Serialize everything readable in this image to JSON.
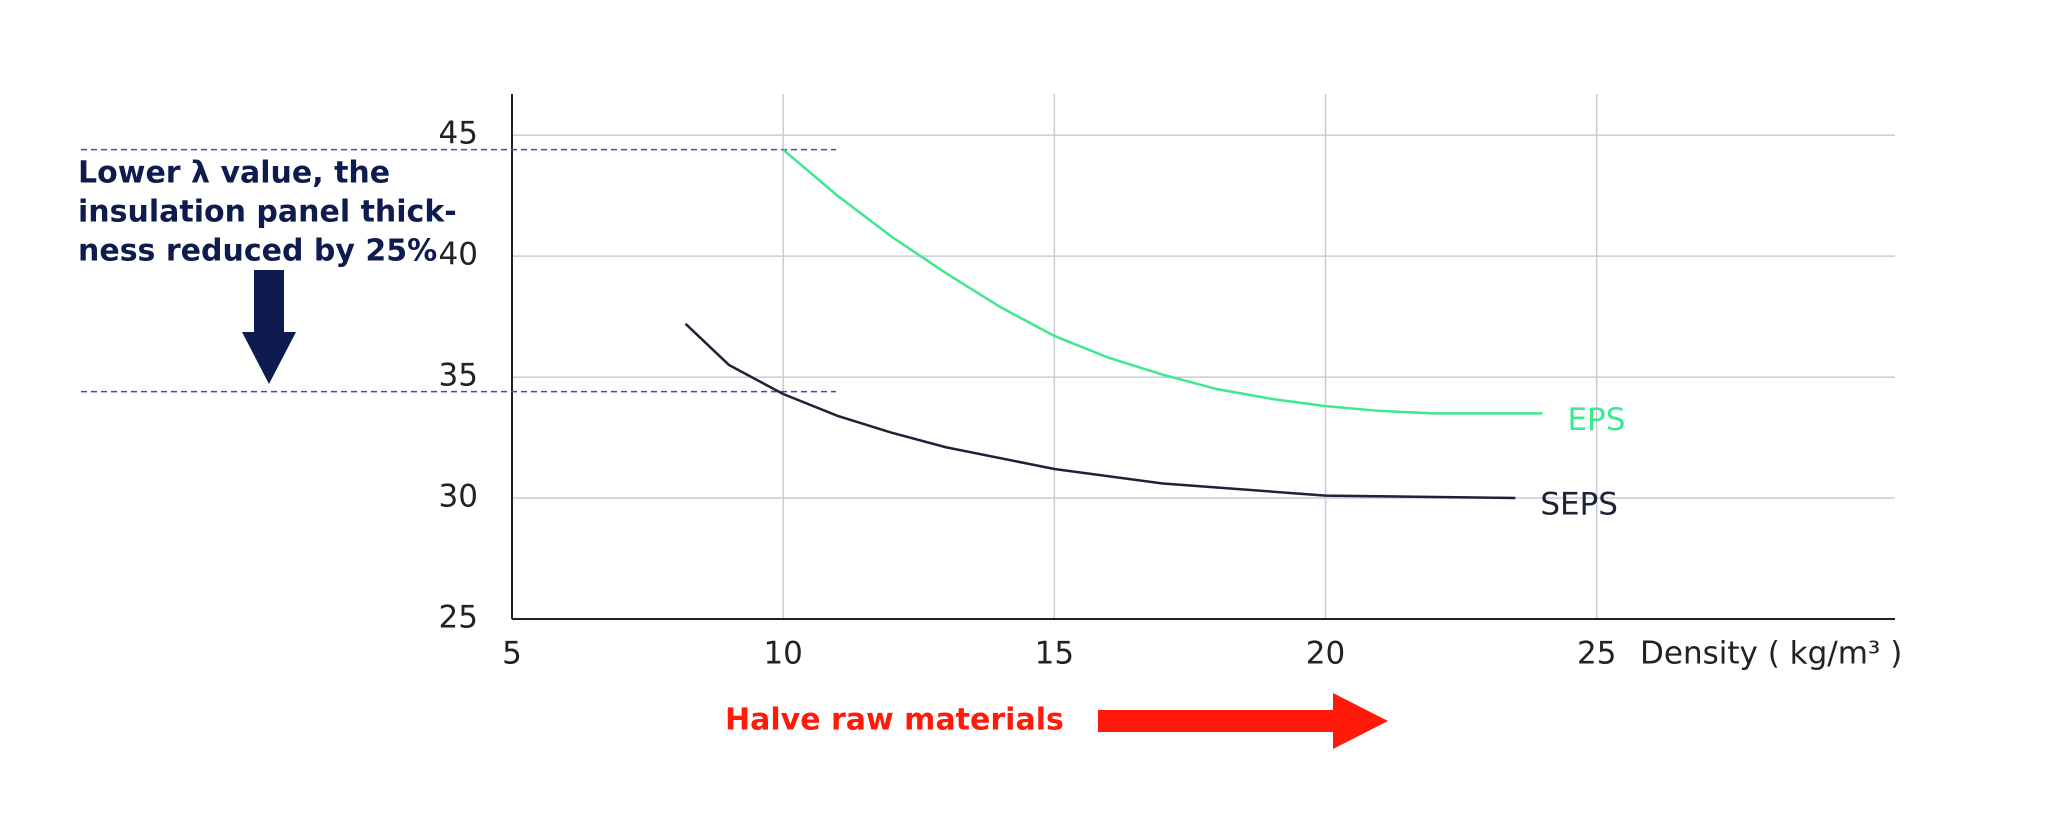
{
  "chart_data": {
    "type": "line",
    "x_label": "Density ( kg/m³ )",
    "annotation_lines": [
      "Lower λ value, the",
      "insulation panel thick-",
      "ness reduced by 25%"
    ],
    "annotation_bottom": "Halve raw materials",
    "reference_lines": [
      44.4,
      34.4
    ],
    "series": [
      {
        "name": "EPS",
        "color": "#3ee88f",
        "x": [
          10,
          11,
          12,
          13,
          14,
          15,
          16,
          17,
          18,
          19,
          20,
          21,
          22,
          24
        ],
        "values": [
          44.4,
          42.5,
          40.8,
          39.3,
          37.9,
          36.7,
          35.8,
          35.1,
          34.5,
          34.1,
          33.8,
          33.6,
          33.5,
          33.5
        ]
      },
      {
        "name": "SEPS",
        "color": "#1e2235",
        "x": [
          8.2,
          9,
          10,
          11,
          12,
          13,
          15,
          17,
          20,
          23.5
        ],
        "values": [
          37.2,
          35.5,
          34.3,
          33.4,
          32.7,
          32.1,
          31.2,
          30.6,
          30.1,
          30.0
        ]
      }
    ],
    "xlim": [
      5,
      30.5
    ],
    "ylim": [
      25,
      46.7
    ],
    "xticks": [
      5,
      10,
      15,
      20,
      25
    ],
    "yticks": [
      25,
      30,
      35,
      40,
      45
    ],
    "grid": true
  }
}
